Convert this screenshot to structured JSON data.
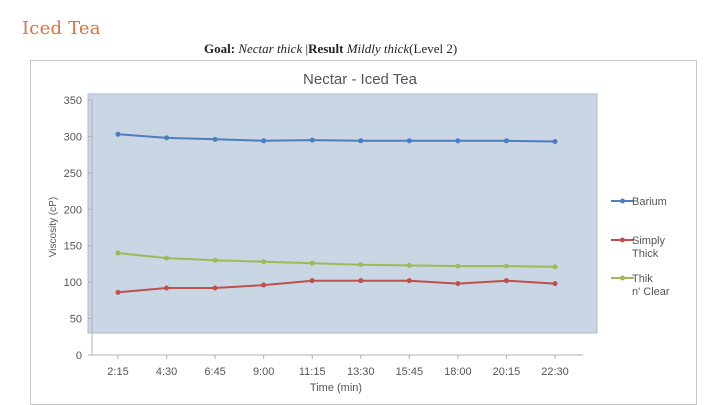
{
  "slide": {
    "title": "Iced Tea",
    "goal_label": "Goal:",
    "goal_value": "Nectar thick",
    "separator": "|",
    "result_label": "Result",
    "result_value": "Mildly thick",
    "result_level": "(Level 2)"
  },
  "chart_data": {
    "type": "line",
    "title": "Nectar - Iced Tea",
    "xlabel": "Time (min)",
    "ylabel": "Viscosity (cP)",
    "ylim": [
      0,
      350
    ],
    "yticks": [
      "0",
      "50",
      "100",
      "150",
      "200",
      "250",
      "300",
      "350"
    ],
    "categories": [
      "2:15",
      "4:30",
      "6:45",
      "9:00",
      "11:15",
      "13:30",
      "15:45",
      "18:00",
      "20:15",
      "22:30"
    ],
    "grid": false,
    "legend_position": "right",
    "plot_background": "#c9d6e3",
    "series": [
      {
        "name": "Barium",
        "color": "#4f7dc0",
        "values": [
          303,
          298,
          296,
          294,
          295,
          294,
          294,
          294,
          294,
          293
        ]
      },
      {
        "name": "Simply Thick",
        "color": "#c0504d",
        "values": [
          86,
          92,
          92,
          96,
          102,
          102,
          102,
          98,
          102,
          98
        ]
      },
      {
        "name": "Thik n' Clear",
        "color": "#9bbb59",
        "values": [
          140,
          133,
          130,
          128,
          126,
          124,
          123,
          122,
          122,
          121
        ]
      }
    ]
  }
}
